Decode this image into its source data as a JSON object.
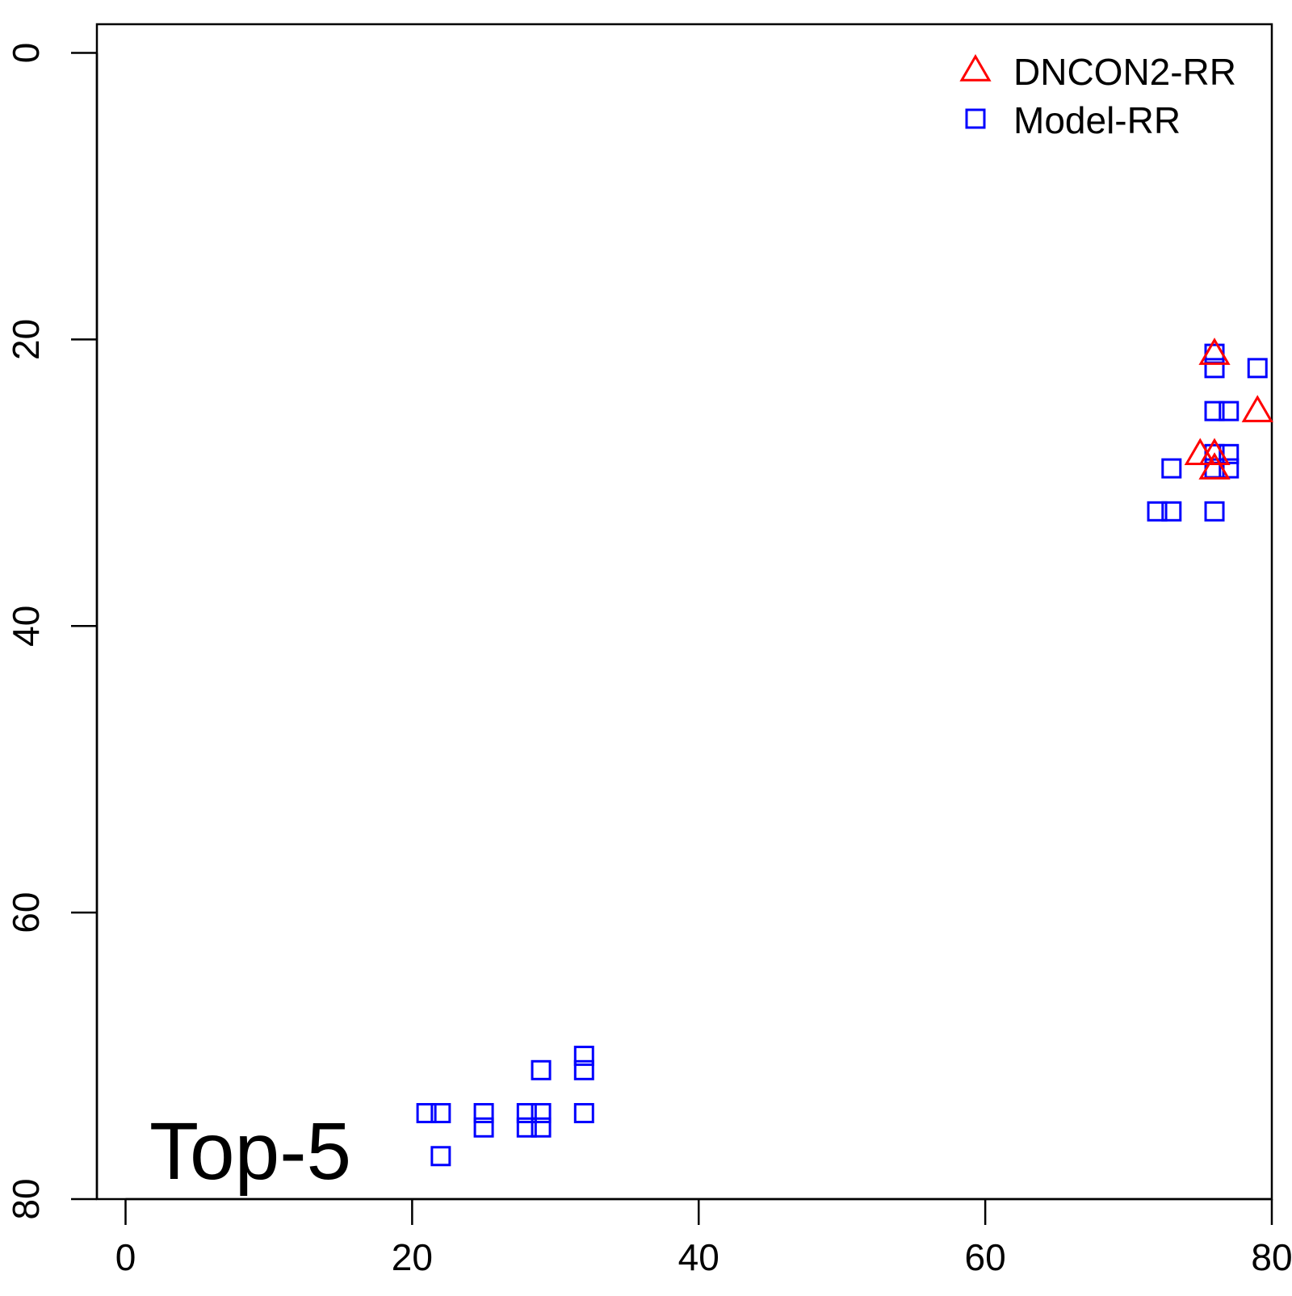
{
  "chart_data": {
    "type": "scatter",
    "title": "",
    "xlabel": "",
    "ylabel": "",
    "xlim": [
      -2,
      80
    ],
    "ylim": [
      -2,
      80
    ],
    "y_reversed": true,
    "x_ticks": [
      0,
      20,
      40,
      60,
      80
    ],
    "y_ticks": [
      0,
      20,
      40,
      60,
      80
    ],
    "x_tick_labels": [
      "0",
      "20",
      "40",
      "60",
      "80"
    ],
    "y_tick_labels": [
      "0",
      "20",
      "40",
      "60",
      "80"
    ],
    "annotation": "Top-5",
    "legend_position": "top-right",
    "grid": false,
    "series": [
      {
        "name": "DNCON2-RR",
        "marker": "triangle",
        "color": "#ff0000",
        "points": [
          [
            76,
            21
          ],
          [
            79,
            25
          ],
          [
            75,
            28
          ],
          [
            76,
            28
          ],
          [
            76,
            29
          ]
        ]
      },
      {
        "name": "Model-RR",
        "marker": "square",
        "color": "#0000ff",
        "points": [
          [
            76,
            21
          ],
          [
            79,
            22
          ],
          [
            76,
            22
          ],
          [
            76,
            25
          ],
          [
            77,
            25
          ],
          [
            77,
            28
          ],
          [
            76,
            28
          ],
          [
            73,
            29
          ],
          [
            76,
            29
          ],
          [
            77,
            29
          ],
          [
            72,
            32
          ],
          [
            73,
            32
          ],
          [
            76,
            32
          ],
          [
            32,
            70
          ],
          [
            32,
            71
          ],
          [
            29,
            71
          ],
          [
            21,
            74
          ],
          [
            22,
            74
          ],
          [
            25,
            74
          ],
          [
            28,
            74
          ],
          [
            29,
            74
          ],
          [
            32,
            74
          ],
          [
            25,
            75
          ],
          [
            28,
            75
          ],
          [
            29,
            75
          ],
          [
            22,
            77
          ]
        ]
      }
    ]
  }
}
